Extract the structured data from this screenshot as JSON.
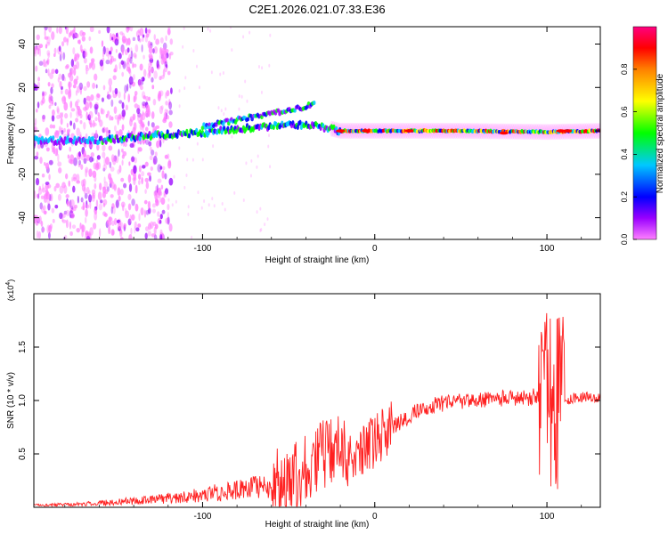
{
  "title": "C2E1.2026.021.07.33.E36",
  "chart_data": [
    {
      "type": "heatmap",
      "ylabel": "Frequency (Hz)",
      "xlabel": "Height of straight line (km)",
      "xlim": [
        -198,
        131
      ],
      "ylim": [
        -50,
        48
      ],
      "x_ticks": [
        {
          "value": -100,
          "label": "-100"
        },
        {
          "value": 0,
          "label": "0"
        },
        {
          "value": 100,
          "label": "100"
        }
      ],
      "y_ticks": [
        {
          "value": -40,
          "label": "-40"
        },
        {
          "value": -20,
          "label": "-20"
        },
        {
          "value": 0,
          "label": "0"
        },
        {
          "value": 20,
          "label": "20"
        },
        {
          "value": 40,
          "label": "40"
        }
      ],
      "ridge": [
        {
          "x": -198,
          "y": -4.5
        },
        {
          "x": -160,
          "y": -4.5
        },
        {
          "x": -140,
          "y": -3
        },
        {
          "x": -120,
          "y": -1.5
        },
        {
          "x": -100,
          "y": -1
        },
        {
          "x": -80,
          "y": 1
        },
        {
          "x": -60,
          "y": 2
        },
        {
          "x": -40,
          "y": 3
        },
        {
          "x": -25,
          "y": 1
        },
        {
          "x": -20,
          "y": 0
        },
        {
          "x": 0,
          "y": 0
        },
        {
          "x": 50,
          "y": 0
        },
        {
          "x": 100,
          "y": -0.5
        },
        {
          "x": 131,
          "y": 0
        }
      ],
      "upper_branch": [
        {
          "x": -100,
          "y": 2
        },
        {
          "x": -80,
          "y": 5
        },
        {
          "x": -60,
          "y": 8
        },
        {
          "x": -40,
          "y": 11
        },
        {
          "x": -35,
          "y": 13
        }
      ],
      "colorbar": {
        "label": "Normalized spectral amplitude",
        "ticks": [
          {
            "value": 0.0,
            "label": "0.0"
          },
          {
            "value": 0.2,
            "label": "0.2"
          },
          {
            "value": 0.4,
            "label": "0.4"
          },
          {
            "value": 0.6,
            "label": "0.6"
          },
          {
            "value": 0.8,
            "label": "0.8"
          }
        ],
        "range": [
          0,
          1
        ],
        "colors": [
          "#ff80ff",
          "#9900ff",
          "#0000ff",
          "#00c8ff",
          "#00ff00",
          "#ffff00",
          "#ff8000",
          "#ff0000",
          "#ff0080"
        ]
      }
    },
    {
      "type": "line",
      "ylabel": "SNR (10 * v/v)",
      "xlabel": "Height of straight line (km)",
      "multiplier": "(x10",
      "multiplier_exp": "4",
      "xlim": [
        -198,
        131
      ],
      "ylim": [
        0,
        2.0
      ],
      "x_ticks": [
        {
          "value": -100,
          "label": "-100"
        },
        {
          "value": 0,
          "label": "0"
        },
        {
          "value": 100,
          "label": "100"
        }
      ],
      "y_ticks": [
        {
          "value": 0.5,
          "label": "0.5"
        },
        {
          "value": 1.0,
          "label": "1.0"
        },
        {
          "value": 1.5,
          "label": "1.5"
        }
      ],
      "color": "#ff2020",
      "series": [
        {
          "name": "SNR",
          "points": [
            {
              "x": -198,
              "y": 0.02
            },
            {
              "x": -170,
              "y": 0.03
            },
            {
              "x": -150,
              "y": 0.05
            },
            {
              "x": -130,
              "y": 0.07
            },
            {
              "x": -110,
              "y": 0.1
            },
            {
              "x": -90,
              "y": 0.14
            },
            {
              "x": -70,
              "y": 0.18
            },
            {
              "x": -55,
              "y": 0.22
            },
            {
              "x": -45,
              "y": 0.3
            },
            {
              "x": -40,
              "y": 0.4
            },
            {
              "x": -35,
              "y": 0.45
            },
            {
              "x": -30,
              "y": 0.5
            },
            {
              "x": -25,
              "y": 0.52
            },
            {
              "x": -20,
              "y": 0.5
            },
            {
              "x": -15,
              "y": 0.45
            },
            {
              "x": -10,
              "y": 0.45
            },
            {
              "x": -5,
              "y": 0.55
            },
            {
              "x": 0,
              "y": 0.62
            },
            {
              "x": 5,
              "y": 0.7
            },
            {
              "x": 10,
              "y": 0.75
            },
            {
              "x": 15,
              "y": 0.8
            },
            {
              "x": 20,
              "y": 0.85
            },
            {
              "x": 25,
              "y": 0.9
            },
            {
              "x": 30,
              "y": 0.93
            },
            {
              "x": 35,
              "y": 0.96
            },
            {
              "x": 40,
              "y": 0.97
            },
            {
              "x": 50,
              "y": 0.99
            },
            {
              "x": 60,
              "y": 1.0
            },
            {
              "x": 70,
              "y": 1.02
            },
            {
              "x": 80,
              "y": 1.02
            },
            {
              "x": 90,
              "y": 1.03
            },
            {
              "x": 95,
              "y": 1.05
            },
            {
              "x": 100,
              "y": 1.05
            },
            {
              "x": 103,
              "y": 1.0
            },
            {
              "x": 106,
              "y": 0.98
            },
            {
              "x": 110,
              "y": 1.0
            },
            {
              "x": 120,
              "y": 1.03
            },
            {
              "x": 131,
              "y": 1.03
            }
          ]
        }
      ]
    }
  ]
}
